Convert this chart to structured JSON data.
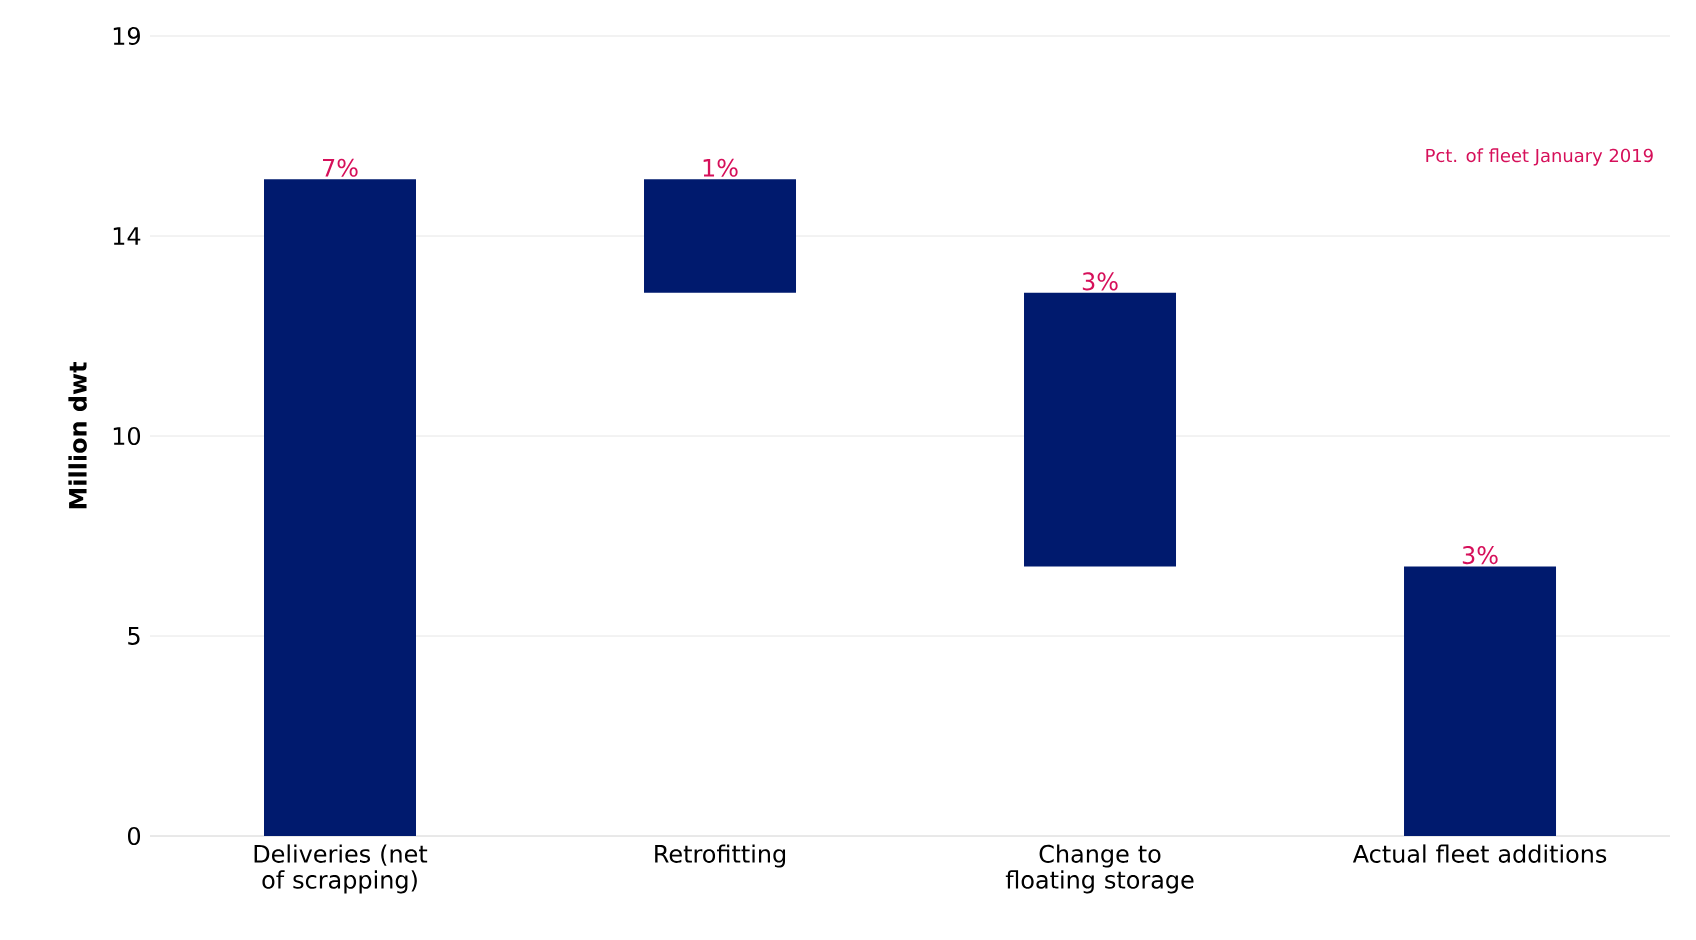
{
  "chart_data": {
    "type": "bar",
    "ylabel": "Million dwt",
    "categories": [
      "Deliveries (net of scrapping)",
      "Retrofitting",
      "Change to floating storage",
      "Actual fleet additions"
    ],
    "values": [
      15.6,
      -2.7,
      -6.5,
      6.4
    ],
    "base": [
      0,
      15.6,
      12.9,
      0
    ],
    "color": "#001a6e",
    "annotations": [
      {
        "text": "7%",
        "x": "Deliveries (net of scrapping)",
        "y": 15.6
      },
      {
        "text": "1%",
        "x": "Retrofitting",
        "y": 15.6
      },
      {
        "text": "3%",
        "x": "Change to floating storage",
        "y": 12.9
      },
      {
        "text": "3%",
        "x": "Actual fleet additions",
        "y": 6.4
      },
      "Pct. of fleet January 2019"
    ],
    "ylim": [
      0,
      19
    ],
    "yticks": [
      {
        "value": 0,
        "label": "0"
      },
      {
        "value": 4.75,
        "label": "5"
      },
      {
        "value": 9.5,
        "label": "10"
      },
      {
        "value": 14.25,
        "label": "14"
      },
      {
        "value": 19,
        "label": "19"
      }
    ],
    "grid": "y"
  }
}
